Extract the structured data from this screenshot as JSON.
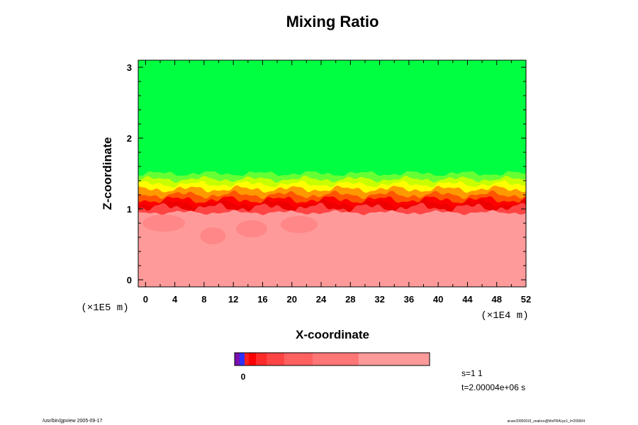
{
  "chart_data": {
    "type": "heatmap",
    "title": "Mixing Ratio",
    "xlabel": "X-coordinate",
    "ylabel": "Z-coordinate",
    "x_scale_label": "(×1E4 m)",
    "y_scale_label": "(×1E5 m)",
    "xlim": [
      -1,
      52
    ],
    "ylim": [
      -0.1,
      3.1
    ],
    "x_ticks": [
      0,
      4,
      8,
      12,
      16,
      20,
      24,
      28,
      32,
      36,
      40,
      44,
      48,
      52
    ],
    "y_ticks": [
      0,
      1,
      2,
      3
    ],
    "layers": [
      {
        "name": "upper",
        "z_range": [
          1.5,
          3.1
        ],
        "color": "#00ff40"
      },
      {
        "name": "light-green",
        "z_top": 1.5,
        "color": "#66ff33"
      },
      {
        "name": "yellow-green",
        "z_top": 1.42,
        "color": "#c8ff00"
      },
      {
        "name": "yellow",
        "z_top": 1.35,
        "color": "#ffff00"
      },
      {
        "name": "orange",
        "z_top": 1.28,
        "color": "#ff9900"
      },
      {
        "name": "red-orange",
        "z_top": 1.2,
        "color": "#ff5500"
      },
      {
        "name": "red",
        "z_top": 1.13,
        "color": "#ff0000"
      },
      {
        "name": "dark-red",
        "z_top": 1.08,
        "color": "#ee0000"
      },
      {
        "name": "light-red",
        "z_top": 1.02,
        "color": "#ff4444"
      },
      {
        "name": "lower",
        "z_range": [
          -0.1,
          0.95
        ],
        "color": "#ff9a9a"
      }
    ],
    "colorbar": {
      "label": "0",
      "colors": [
        "#7a10b0",
        "#3030ff",
        "#ff2020",
        "#ff0000",
        "#ff2a2a",
        "#ff4444",
        "#ff6060",
        "#ff7676",
        "#ff9a9a"
      ]
    }
  },
  "info": {
    "step_label": "s=1 1",
    "time_label": "t=2.00004e+06 s",
    "footer_left": "/usr/bin/gpview 2005-09-17",
    "footer_right": "arare20050915_snakno@MoPRAl.pc1_t=200004"
  }
}
